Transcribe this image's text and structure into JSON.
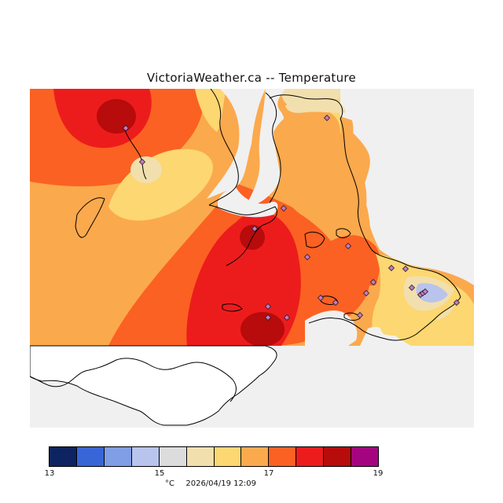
{
  "title": "VictoriaWeather.ca  --  Temperature",
  "colorbar": {
    "unit": "°C",
    "timestamp": "2026/04/19 12:09",
    "ticks": [
      "13",
      "15",
      "17",
      "19"
    ],
    "colors": [
      "#0d2461",
      "#3866d6",
      "#7f9ee6",
      "#b8c4ec",
      "#dcdcdc",
      "#f2dfae",
      "#fcd772",
      "#fba94d",
      "#fb6122",
      "#ed1c1c",
      "#b80b0b",
      "#a4057f"
    ]
  },
  "map": {
    "background": "#f0f0f0",
    "station_marker": "diamond",
    "station_count": 22
  }
}
